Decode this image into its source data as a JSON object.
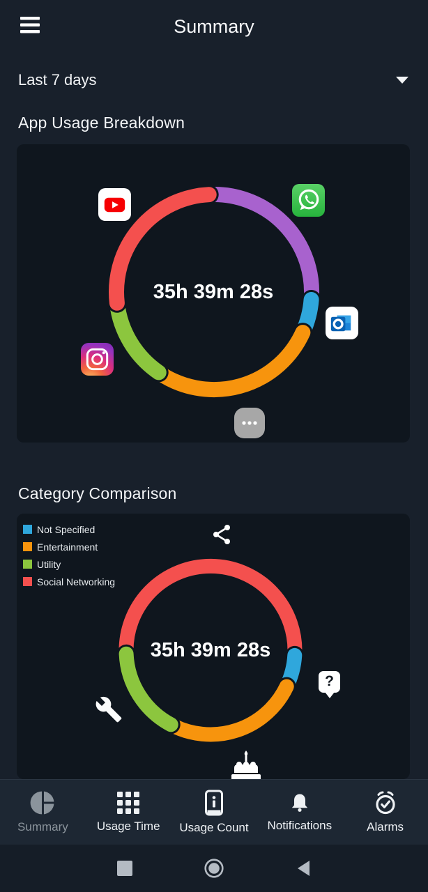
{
  "app_bar": {
    "title": "Summary"
  },
  "filter": {
    "value": "Last 7 days"
  },
  "section_app_usage": {
    "heading": "App Usage Breakdown"
  },
  "section_category": {
    "heading": "Category Comparison"
  },
  "chart_data": [
    {
      "type": "donut",
      "title": "App Usage Breakdown",
      "center_label": "35h 39m 28s",
      "angle_convention": "degrees clockwise from 12 o'clock",
      "segments": [
        {
          "label": "WhatsApp",
          "icon": "whatsapp-icon",
          "color": "#a862ce",
          "start": 357,
          "span": 97.5,
          "percent": 27.1
        },
        {
          "label": "Outlook",
          "icon": "outlook-icon",
          "color": "#2fa7dc",
          "start": 94.5,
          "span": 20,
          "percent": 5.6
        },
        {
          "label": "Other apps",
          "icon": "more-icon",
          "color": "#f7940d",
          "start": 114.5,
          "span": 100,
          "percent": 27.8
        },
        {
          "label": "Instagram",
          "icon": "instagram-icon",
          "color": "#8cc63e",
          "start": 214.5,
          "span": 49,
          "percent": 13.6
        },
        {
          "label": "YouTube",
          "icon": "youtube-icon",
          "color": "#f4504e",
          "start": 263.5,
          "span": 93.5,
          "percent": 26.0
        }
      ]
    },
    {
      "type": "donut",
      "title": "Category Comparison",
      "center_label": "35h 39m 28s",
      "angle_convention": "degrees clockwise from 12 o'clock",
      "legend": [
        {
          "label": "Not Specified",
          "color": "#2fa7dc"
        },
        {
          "label": "Entertainment",
          "color": "#f7940d"
        },
        {
          "label": "Utility",
          "color": "#8cc63e"
        },
        {
          "label": "Social Networking",
          "color": "#f4504e"
        }
      ],
      "segments": [
        {
          "label": "Social Networking",
          "icon": "share-icon",
          "color": "#f4504e",
          "start": 267.5,
          "span": 186,
          "percent": 51.7
        },
        {
          "label": "Not Specified",
          "icon": "question-icon",
          "color": "#2fa7dc",
          "start": 93.5,
          "span": 22,
          "percent": 6.1,
          "glyph": "?"
        },
        {
          "label": "Entertainment",
          "icon": "cake-icon",
          "color": "#f7940d",
          "start": 115.5,
          "span": 92.5,
          "percent": 25.7
        },
        {
          "label": "Utility",
          "icon": "wrench-icon",
          "color": "#8cc63e",
          "start": 208,
          "span": 59.5,
          "percent": 16.5
        }
      ]
    }
  ],
  "bottom_nav": {
    "items": [
      {
        "label": "Summary",
        "icon": "pie-chart-icon",
        "active": true
      },
      {
        "label": "Usage Time",
        "icon": "grid-icon",
        "active": false
      },
      {
        "label": "Usage Count",
        "icon": "phone-info-icon",
        "active": false
      },
      {
        "label": "Notifications",
        "icon": "bell-icon",
        "active": false
      },
      {
        "label": "Alarms",
        "icon": "alarm-check-icon",
        "active": false
      }
    ]
  },
  "android_nav": {
    "buttons": [
      {
        "name": "recents",
        "icon": "square-icon"
      },
      {
        "name": "home",
        "icon": "circle-icon"
      },
      {
        "name": "back",
        "icon": "triangle-left-icon"
      }
    ]
  },
  "colors": {
    "page_bg": "#18202b",
    "card_bg": "#0f161e",
    "tabbar_bg": "#1d2733",
    "androidbar_bg": "#151d27",
    "red": "#f4504e",
    "purple": "#a862ce",
    "blue": "#2fa7dc",
    "orange": "#f7940d",
    "green": "#8cc63e"
  }
}
